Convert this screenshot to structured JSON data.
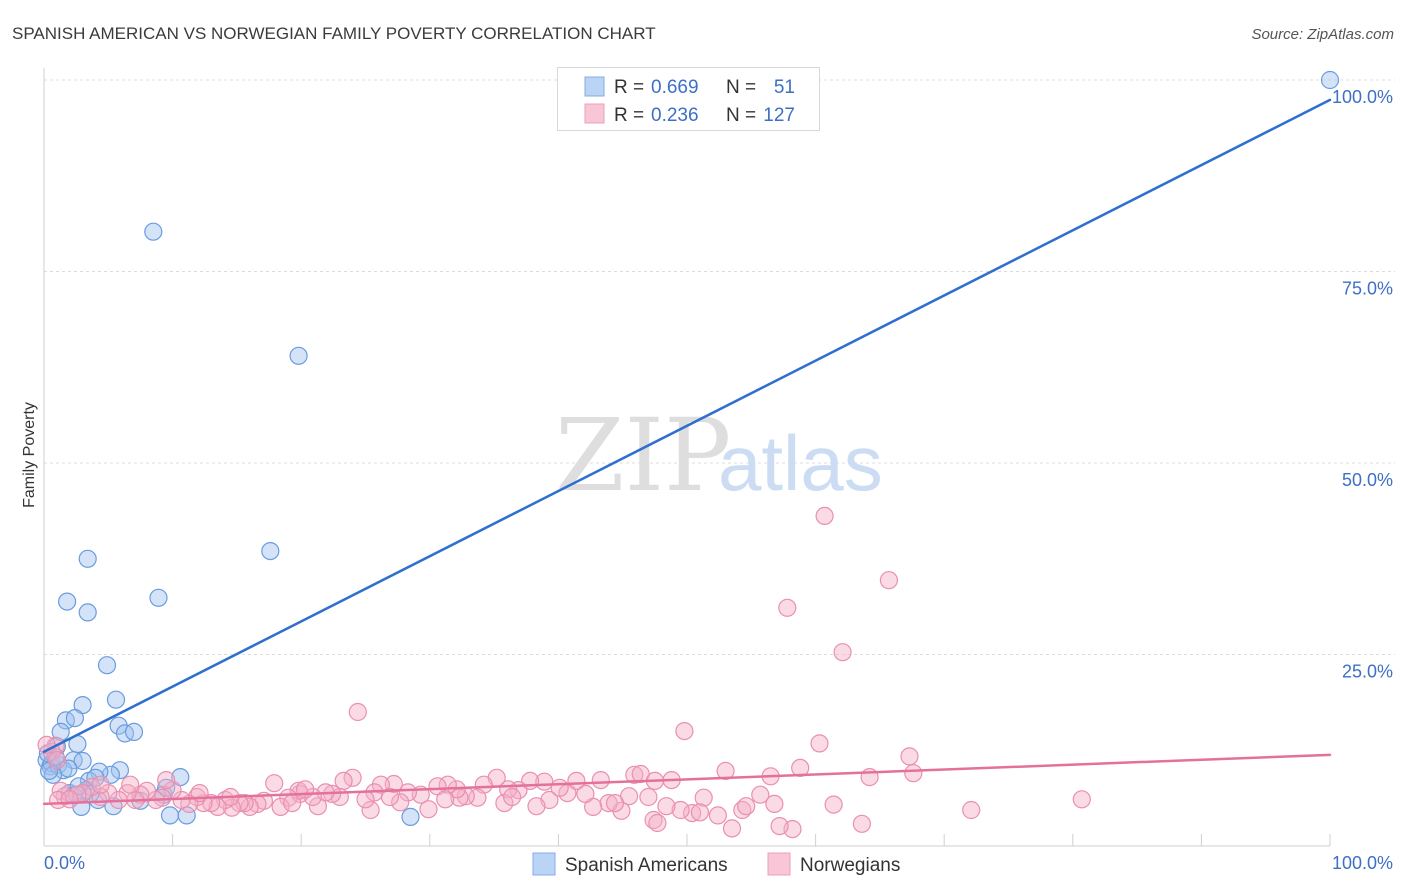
{
  "source": "Source: ZipAtlas.com",
  "watermark": {
    "zip": "ZIP",
    "atlas": "atlas"
  },
  "colors": {
    "tick_label": "#3d6fc6",
    "gridline": "#dcdcdc",
    "text": "#333333"
  },
  "legend_stats": [
    {
      "r_label": "R =",
      "r": "0.669",
      "n_label": "N =",
      "n": "51",
      "swatch": "#b9d4f4"
    },
    {
      "r_label": "R =",
      "r": "0.236",
      "n_label": "N =",
      "n": "127",
      "swatch": "#f8c6d7"
    }
  ],
  "chart_data": {
    "type": "scatter",
    "title": "SPANISH AMERICAN VS NORWEGIAN FAMILY POVERTY CORRELATION CHART",
    "ylabel": "Family Poverty",
    "xlim": [
      0,
      100
    ],
    "ylim": [
      0,
      100
    ],
    "x_ticks": [
      10,
      20,
      30,
      40,
      50,
      60,
      70,
      80,
      90,
      100
    ],
    "x_tick_labels": [
      "0.0%",
      "100.0%"
    ],
    "y_ticks": [
      25,
      50,
      75,
      100
    ],
    "y_tick_labels": [
      "25.0%",
      "50.0%",
      "75.0%",
      "100.0%"
    ],
    "grid": true,
    "series": [
      {
        "name": "Spanish Americans",
        "point_fill": "#9fc2ee",
        "point_stroke": "#6a9cdf",
        "line_color": "#2e6fcf",
        "trend": {
          "x": [
            0,
            100
          ],
          "y": [
            12.3,
            97.4
          ]
        },
        "points": [
          [
            100,
            100
          ],
          [
            8.5,
            80.2
          ],
          [
            19.8,
            64.0
          ],
          [
            17.6,
            38.5
          ],
          [
            3.4,
            37.5
          ],
          [
            1.8,
            31.9
          ],
          [
            8.9,
            32.4
          ],
          [
            3.4,
            30.5
          ],
          [
            4.9,
            23.6
          ],
          [
            3.0,
            18.4
          ],
          [
            5.6,
            19.1
          ],
          [
            1.7,
            16.4
          ],
          [
            2.4,
            16.7
          ],
          [
            1.3,
            14.9
          ],
          [
            5.8,
            15.7
          ],
          [
            6.3,
            14.7
          ],
          [
            7.0,
            14.9
          ],
          [
            2.6,
            13.3
          ],
          [
            1.0,
            13.0
          ],
          [
            2.3,
            11.2
          ],
          [
            3.0,
            11.1
          ],
          [
            0.2,
            11.2
          ],
          [
            0.5,
            10.4
          ],
          [
            0.6,
            10.8
          ],
          [
            1.1,
            10.6
          ],
          [
            1.5,
            9.9
          ],
          [
            0.7,
            9.3
          ],
          [
            5.9,
            9.9
          ],
          [
            5.2,
            9.3
          ],
          [
            4.3,
            9.7
          ],
          [
            3.5,
            8.5
          ],
          [
            10.6,
            9.0
          ],
          [
            3.3,
            7.3
          ],
          [
            2.0,
            6.9
          ],
          [
            4.2,
            6.0
          ],
          [
            2.9,
            5.1
          ],
          [
            5.4,
            5.2
          ],
          [
            7.5,
            5.9
          ],
          [
            9.3,
            6.7
          ],
          [
            9.5,
            7.6
          ],
          [
            9.8,
            4.0
          ],
          [
            11.1,
            4.0
          ],
          [
            28.5,
            3.8
          ],
          [
            3.6,
            6.8
          ],
          [
            2.3,
            6.6
          ],
          [
            0.4,
            9.8
          ],
          [
            1.9,
            10.1
          ],
          [
            0.9,
            11.6
          ],
          [
            2.7,
            7.8
          ],
          [
            4.0,
            8.9
          ],
          [
            0.3,
            12.1
          ]
        ]
      },
      {
        "name": "Norwegians",
        "point_fill": "#f5afc6",
        "point_stroke": "#ea8fb0",
        "line_color": "#e3719b",
        "trend": {
          "x": [
            0,
            100
          ],
          "y": [
            5.5,
            11.9
          ]
        },
        "points": [
          [
            60.7,
            43.1
          ],
          [
            65.7,
            34.7
          ],
          [
            57.8,
            31.1
          ],
          [
            62.1,
            25.3
          ],
          [
            24.4,
            17.5
          ],
          [
            49.8,
            15.0
          ],
          [
            60.3,
            13.4
          ],
          [
            67.3,
            11.7
          ],
          [
            0.9,
            13.1
          ],
          [
            80.7,
            6.1
          ],
          [
            72.1,
            4.7
          ],
          [
            67.6,
            9.5
          ],
          [
            64.2,
            9.0
          ],
          [
            58.8,
            10.2
          ],
          [
            56.5,
            9.1
          ],
          [
            53.0,
            9.8
          ],
          [
            48.8,
            8.6
          ],
          [
            45.9,
            9.3
          ],
          [
            46.4,
            9.4
          ],
          [
            61.4,
            5.4
          ],
          [
            63.6,
            2.9
          ],
          [
            58.2,
            2.2
          ],
          [
            57.2,
            2.6
          ],
          [
            53.5,
            2.3
          ],
          [
            54.3,
            4.7
          ],
          [
            55.7,
            6.7
          ],
          [
            56.8,
            5.5
          ],
          [
            52.4,
            4.0
          ],
          [
            51.3,
            6.3
          ],
          [
            50.4,
            4.3
          ],
          [
            49.5,
            4.7
          ],
          [
            48.4,
            5.2
          ],
          [
            47.4,
            3.4
          ],
          [
            47.7,
            3.0
          ],
          [
            47.0,
            6.4
          ],
          [
            45.5,
            6.5
          ],
          [
            44.9,
            4.6
          ],
          [
            43.9,
            5.6
          ],
          [
            43.3,
            8.6
          ],
          [
            42.7,
            5.1
          ],
          [
            42.1,
            6.8
          ],
          [
            41.4,
            8.5
          ],
          [
            40.7,
            6.9
          ],
          [
            39.3,
            6.0
          ],
          [
            38.9,
            8.4
          ],
          [
            38.3,
            5.2
          ],
          [
            37.8,
            8.5
          ],
          [
            36.9,
            7.3
          ],
          [
            36.1,
            7.4
          ],
          [
            35.8,
            5.6
          ],
          [
            35.2,
            8.9
          ],
          [
            34.2,
            8.0
          ],
          [
            33.7,
            6.3
          ],
          [
            32.8,
            6.5
          ],
          [
            32.3,
            6.3
          ],
          [
            32.1,
            7.4
          ],
          [
            31.4,
            8.0
          ],
          [
            30.6,
            7.8
          ],
          [
            29.9,
            4.8
          ],
          [
            29.3,
            6.7
          ],
          [
            28.3,
            7.0
          ],
          [
            27.7,
            5.7
          ],
          [
            27.2,
            8.1
          ],
          [
            26.2,
            8.0
          ],
          [
            25.7,
            7.0
          ],
          [
            25.4,
            4.7
          ],
          [
            25.0,
            6.1
          ],
          [
            24.0,
            8.9
          ],
          [
            23.3,
            8.5
          ],
          [
            23.0,
            6.4
          ],
          [
            22.4,
            6.8
          ],
          [
            21.9,
            7.0
          ],
          [
            21.3,
            5.2
          ],
          [
            20.9,
            6.4
          ],
          [
            19.9,
            6.8
          ],
          [
            19.8,
            7.2
          ],
          [
            19.0,
            6.3
          ],
          [
            18.4,
            5.1
          ],
          [
            17.9,
            8.2
          ],
          [
            17.1,
            5.9
          ],
          [
            16.6,
            5.5
          ],
          [
            16.0,
            5.1
          ],
          [
            15.6,
            5.6
          ],
          [
            15.2,
            5.6
          ],
          [
            14.6,
            5.0
          ],
          [
            14.1,
            6.0
          ],
          [
            13.5,
            5.1
          ],
          [
            13.0,
            5.6
          ],
          [
            12.4,
            5.6
          ],
          [
            11.9,
            6.4
          ],
          [
            11.3,
            5.5
          ],
          [
            10.7,
            6.0
          ],
          [
            10.0,
            7.3
          ],
          [
            9.5,
            8.6
          ],
          [
            9.2,
            6.3
          ],
          [
            8.7,
            6.0
          ],
          [
            8.0,
            7.2
          ],
          [
            7.5,
            6.7
          ],
          [
            7.1,
            6.0
          ],
          [
            6.5,
            6.9
          ],
          [
            5.8,
            6.0
          ],
          [
            5.0,
            6.9
          ],
          [
            4.4,
            6.4
          ],
          [
            3.7,
            7.7
          ],
          [
            3.0,
            6.9
          ],
          [
            2.6,
            6.7
          ],
          [
            1.6,
            6.5
          ],
          [
            1.3,
            7.2
          ],
          [
            1.1,
            6.0
          ],
          [
            0.6,
            12.3
          ],
          [
            1.0,
            11.2
          ],
          [
            0.2,
            13.2
          ],
          [
            2.0,
            6.1
          ],
          [
            4.4,
            8.0
          ],
          [
            12.1,
            6.9
          ],
          [
            14.5,
            6.4
          ],
          [
            19.3,
            5.6
          ],
          [
            20.3,
            7.4
          ],
          [
            26.9,
            6.4
          ],
          [
            31.2,
            6.1
          ],
          [
            36.4,
            6.4
          ],
          [
            40.1,
            7.6
          ],
          [
            44.4,
            5.6
          ],
          [
            51.0,
            4.4
          ],
          [
            54.6,
            5.2
          ],
          [
            47.5,
            8.5
          ],
          [
            6.7,
            8.0
          ]
        ]
      }
    ]
  }
}
